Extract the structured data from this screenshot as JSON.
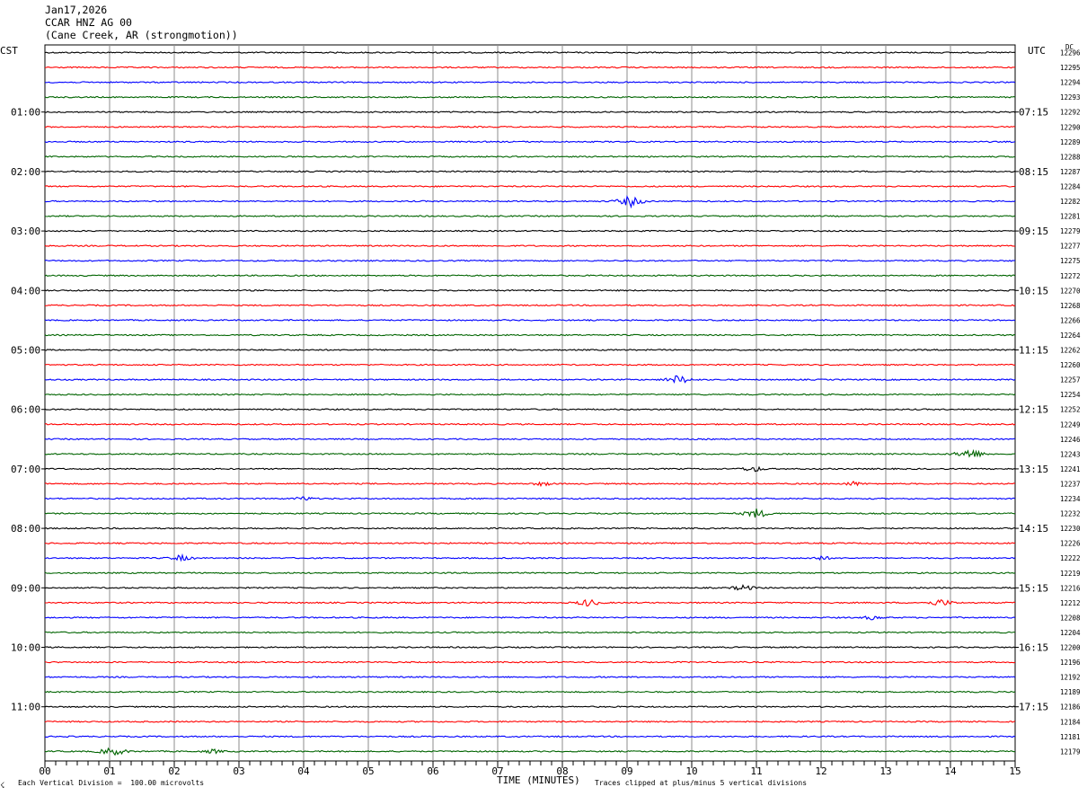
{
  "header": {
    "date": "Jan17,2026",
    "station": "CCAR HNZ AG 00",
    "location": "(Cane Creek, AR (strongmotion))"
  },
  "axes": {
    "left_tz": "CST",
    "right_tz": "UTC",
    "dc_label": "DC",
    "xlabel": "TIME (MINUTES)"
  },
  "footer": {
    "left": "Each Vertical Division =  100.00 microvolts",
    "right": "Traces clipped at plus/minus 5 vertical divisions",
    "logo": "☇"
  },
  "colors": {
    "row_cycle": [
      "#000000",
      "#ff0000",
      "#0000ff",
      "#006400"
    ],
    "grid": "#8c8c8c"
  },
  "chart_data": {
    "type": "line",
    "subtype": "helicorder",
    "x_ticks": [
      "00",
      "01",
      "02",
      "03",
      "04",
      "05",
      "06",
      "07",
      "08",
      "09",
      "10",
      "11",
      "12",
      "13",
      "14",
      "15"
    ],
    "xlim": [
      0,
      15
    ],
    "minutes_per_line": 15,
    "lines": 48,
    "left_hour_labels": [
      "01:00",
      "02:00",
      "03:00",
      "04:00",
      "05:00",
      "06:00",
      "07:00",
      "08:00",
      "09:00",
      "10:00",
      "11:00"
    ],
    "right_hour_labels": [
      "07:15",
      "08:15",
      "09:15",
      "10:15",
      "11:15",
      "12:15",
      "13:15",
      "14:15",
      "15:15",
      "16:15",
      "17:15"
    ],
    "dc_values": [
      "12296",
      "12295",
      "12294",
      "12293",
      "12292",
      "12290",
      "12289",
      "12288",
      "12287",
      "12284",
      "12282",
      "12281",
      "12279",
      "12277",
      "12275",
      "12272",
      "12270",
      "12268",
      "12266",
      "12264",
      "12262",
      "12260",
      "12257",
      "12254",
      "12252",
      "12249",
      "12246",
      "12243",
      "12241",
      "12237",
      "12234",
      "12232",
      "12230",
      "12226",
      "12222",
      "12219",
      "12216",
      "12212",
      "12208",
      "12204",
      "12200",
      "12196",
      "12192",
      "12189",
      "12186",
      "12184",
      "12181",
      "12179"
    ],
    "events": [
      {
        "line": 10,
        "minute": 9.05,
        "amp": 7
      },
      {
        "line": 22,
        "minute": 9.8,
        "amp": 6
      },
      {
        "line": 27,
        "minute": 14.3,
        "amp": 7
      },
      {
        "line": 28,
        "minute": 10.95,
        "amp": 4
      },
      {
        "line": 29,
        "minute": 7.7,
        "amp": 3
      },
      {
        "line": 29,
        "minute": 12.5,
        "amp": 3
      },
      {
        "line": 30,
        "minute": 4.0,
        "amp": 3
      },
      {
        "line": 31,
        "minute": 11.0,
        "amp": 6
      },
      {
        "line": 34,
        "minute": 2.1,
        "amp": 4
      },
      {
        "line": 34,
        "minute": 12.0,
        "amp": 3
      },
      {
        "line": 36,
        "minute": 10.8,
        "amp": 4
      },
      {
        "line": 37,
        "minute": 8.4,
        "amp": 5
      },
      {
        "line": 37,
        "minute": 13.85,
        "amp": 5
      },
      {
        "line": 38,
        "minute": 12.8,
        "amp": 3
      },
      {
        "line": 47,
        "minute": 1.05,
        "amp": 6
      },
      {
        "line": 47,
        "minute": 2.6,
        "amp": 3
      }
    ]
  }
}
